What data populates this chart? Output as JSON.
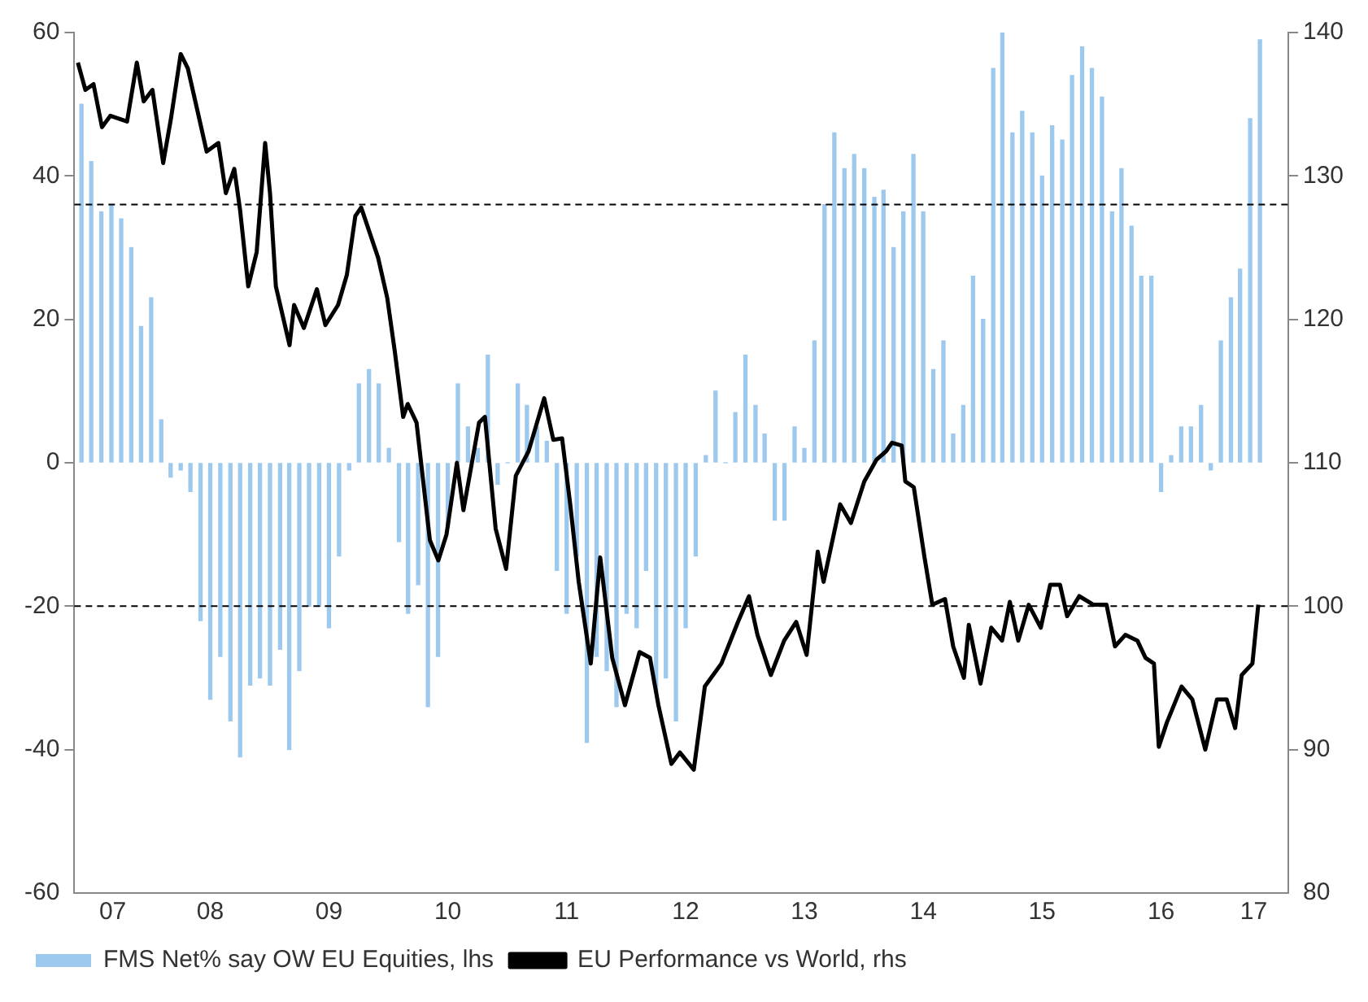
{
  "chart_data": {
    "type": "bar",
    "legend": "bottom left",
    "grid": false,
    "xlim": [
      "2007-05-10",
      "2017-07-27"
    ],
    "xticks": [
      {
        "value": "2007-09-05",
        "label": "07"
      },
      {
        "value": "2008-07-01",
        "label": "08"
      },
      {
        "value": "2009-07-01",
        "label": "09"
      },
      {
        "value": "2010-07-01",
        "label": "10"
      },
      {
        "value": "2011-07-01",
        "label": "11"
      },
      {
        "value": "2012-07-01",
        "label": "12"
      },
      {
        "value": "2013-07-01",
        "label": "13"
      },
      {
        "value": "2014-07-01",
        "label": "14"
      },
      {
        "value": "2015-07-01",
        "label": "15"
      },
      {
        "value": "2016-07-01",
        "label": "16"
      },
      {
        "value": "2017-04-12",
        "label": "17"
      }
    ],
    "ylim": [
      -60,
      60
    ],
    "yticks": [
      -60,
      -40,
      -20,
      0,
      20,
      40,
      60
    ],
    "y2lim": [
      80,
      140
    ],
    "y2ticks": [
      80,
      90,
      100,
      110,
      120,
      130,
      140
    ],
    "ref_lines": [
      {
        "axis": "y",
        "value": 36,
        "color": "#000000",
        "line_style": "dashed"
      },
      {
        "axis": "y",
        "value": -20,
        "color": "#000000",
        "line_style": "dashed"
      }
    ],
    "series": [
      {
        "name": "FMS Net% say OW EU Equities, lhs",
        "color": "#9ec9ee",
        "x": [
          "2007-06",
          "2007-07",
          "2007-08",
          "2007-09",
          "2007-10",
          "2007-11",
          "2007-12",
          "2008-01",
          "2008-02",
          "2008-03",
          "2008-04",
          "2008-05",
          "2008-06",
          "2008-07",
          "2008-08",
          "2008-09",
          "2008-10",
          "2008-11",
          "2008-12",
          "2009-01",
          "2009-02",
          "2009-03",
          "2009-04",
          "2009-05",
          "2009-06",
          "2009-07",
          "2009-08",
          "2009-09",
          "2009-10",
          "2009-11",
          "2009-12",
          "2010-01",
          "2010-02",
          "2010-03",
          "2010-04",
          "2010-05",
          "2010-06",
          "2010-07",
          "2010-08",
          "2010-09",
          "2010-10",
          "2010-11",
          "2010-12",
          "2011-01",
          "2011-02",
          "2011-03",
          "2011-04",
          "2011-05",
          "2011-06",
          "2011-07",
          "2011-08",
          "2011-09",
          "2011-10",
          "2011-11",
          "2011-12",
          "2012-01",
          "2012-02",
          "2012-03",
          "2012-04",
          "2012-05",
          "2012-06",
          "2012-07",
          "2012-08",
          "2012-09",
          "2012-10",
          "2012-11",
          "2012-12",
          "2013-01",
          "2013-02",
          "2013-03",
          "2013-04",
          "2013-05",
          "2013-06",
          "2013-07",
          "2013-08",
          "2013-09",
          "2013-10",
          "2013-11",
          "2013-12",
          "2014-01",
          "2014-02",
          "2014-03",
          "2014-04",
          "2014-05",
          "2014-06",
          "2014-07",
          "2014-08",
          "2014-09",
          "2014-10",
          "2014-11",
          "2014-12",
          "2015-01",
          "2015-02",
          "2015-03",
          "2015-04",
          "2015-05",
          "2015-06",
          "2015-07",
          "2015-08",
          "2015-09",
          "2015-10",
          "2015-11",
          "2015-12",
          "2016-01",
          "2016-02",
          "2016-03",
          "2016-04",
          "2016-05",
          "2016-06",
          "2016-07",
          "2016-08",
          "2016-09",
          "2016-10",
          "2016-11",
          "2016-12",
          "2017-01",
          "2017-02",
          "2017-03",
          "2017-04",
          "2017-05"
        ],
        "values": [
          50,
          42,
          35,
          36,
          34,
          30,
          19,
          23,
          6,
          -2,
          -1,
          -4,
          -22,
          -33,
          -27,
          -36,
          -41,
          -31,
          -30,
          -31,
          -26,
          -40,
          -29,
          -20,
          -20,
          -23,
          -13,
          -1,
          11,
          13,
          11,
          2,
          -11,
          -21,
          -17,
          -34,
          -27,
          -9,
          11,
          5,
          2,
          15,
          -3,
          0,
          11,
          8,
          5,
          3,
          -15,
          -21,
          -13,
          -39,
          -27,
          -29,
          -34,
          -21,
          -23,
          -15,
          -32,
          -30,
          -36,
          -23,
          -13,
          1,
          10,
          0,
          7,
          15,
          8,
          4,
          -8,
          -8,
          5,
          2,
          17,
          36,
          46,
          41,
          43,
          41,
          37,
          38,
          30,
          35,
          43,
          35,
          13,
          17,
          4,
          8,
          26,
          20,
          55,
          60,
          46,
          49,
          46,
          40,
          47,
          45,
          54,
          58,
          55,
          51,
          35,
          41,
          33,
          26,
          26,
          -4,
          1,
          5,
          5,
          8,
          -1,
          17,
          23,
          27,
          48,
          59
        ]
      },
      {
        "name": "EU Performance vs World, rhs",
        "type": "line",
        "axis": "y2",
        "color": "#000000",
        "marker": "none",
        "x": [
          "2007-05-21",
          "2007-06-13",
          "2007-07-08",
          "2007-08-03",
          "2007-08-29",
          "2007-10-19",
          "2007-11-18",
          "2007-12-09",
          "2008-01-05",
          "2008-02-07",
          "2008-03-02",
          "2008-04-01",
          "2008-04-23",
          "2008-05-18",
          "2008-06-20",
          "2008-07-26",
          "2008-08-18",
          "2008-09-13",
          "2008-10-01",
          "2008-10-26",
          "2008-11-21",
          "2008-12-17",
          "2009-01-01",
          "2009-01-19",
          "2009-03-02",
          "2009-03-16",
          "2009-04-15",
          "2009-05-25",
          "2009-06-20",
          "2009-07-29",
          "2009-08-25",
          "2009-09-20",
          "2009-10-08",
          "2009-11-29",
          "2009-12-27",
          "2010-01-19",
          "2010-02-14",
          "2010-02-28",
          "2010-03-27",
          "2010-05-07",
          "2010-06-02",
          "2010-06-27",
          "2010-07-29",
          "2010-08-18",
          "2010-10-05",
          "2010-10-23",
          "2010-11-25",
          "2010-12-27",
          "2011-01-26",
          "2011-03-06",
          "2011-04-23",
          "2011-05-21",
          "2011-06-17",
          "2011-07-12",
          "2011-08-07",
          "2011-09-13",
          "2011-10-12",
          "2011-11-18",
          "2011-12-27",
          "2012-02-10",
          "2012-03-13",
          "2012-04-08",
          "2012-05-18",
          "2012-06-13",
          "2012-07-26",
          "2012-08-29",
          "2012-10-19",
          "2012-12-09",
          "2013-01-12",
          "2013-02-07",
          "2013-03-20",
          "2013-04-30",
          "2013-06-06",
          "2013-07-08",
          "2013-08-11",
          "2013-08-29",
          "2013-10-19",
          "2013-11-21",
          "2014-01-01",
          "2014-02-07",
          "2014-03-09",
          "2014-03-27",
          "2014-04-26",
          "2014-05-07",
          "2014-06-02",
          "2014-07-05",
          "2014-07-29",
          "2014-09-06",
          "2014-10-01",
          "2014-11-03",
          "2014-11-18",
          "2014-12-24",
          "2015-01-26",
          "2015-02-28",
          "2015-03-24",
          "2015-04-19",
          "2015-05-21",
          "2015-06-27",
          "2015-07-26",
          "2015-08-25",
          "2015-09-16",
          "2015-10-23",
          "2015-12-06",
          "2016-01-15",
          "2016-02-10",
          "2016-03-13",
          "2016-04-19",
          "2016-05-14",
          "2016-06-09",
          "2016-06-24",
          "2016-07-19",
          "2016-09-02",
          "2016-10-05",
          "2016-11-14",
          "2016-12-20",
          "2017-01-19",
          "2017-02-14",
          "2017-03-06",
          "2017-04-08",
          "2017-04-26"
        ],
        "values": [
          137.9,
          136.0,
          136.4,
          133.4,
          134.2,
          133.8,
          137.9,
          135.2,
          136.0,
          130.9,
          134.0,
          138.5,
          137.5,
          135.0,
          131.7,
          132.3,
          128.8,
          130.5,
          127.6,
          122.3,
          124.7,
          132.3,
          128.8,
          122.3,
          118.2,
          121.0,
          119.4,
          122.1,
          119.6,
          121.0,
          123.1,
          127.2,
          127.8,
          124.3,
          121.5,
          117.8,
          113.2,
          114.1,
          112.8,
          104.6,
          103.2,
          105.0,
          110.0,
          106.7,
          112.8,
          113.2,
          105.4,
          102.6,
          109.1,
          110.8,
          114.5,
          111.6,
          111.7,
          107.1,
          101.7,
          96.0,
          103.4,
          96.4,
          93.1,
          96.8,
          96.4,
          93.1,
          89.0,
          89.8,
          88.6,
          94.4,
          96.0,
          98.9,
          100.7,
          98.0,
          95.2,
          97.6,
          98.9,
          96.6,
          103.8,
          101.7,
          107.1,
          105.8,
          108.7,
          110.2,
          110.8,
          111.4,
          111.2,
          108.7,
          108.3,
          103.4,
          100.1,
          100.5,
          97.2,
          95.0,
          98.7,
          94.6,
          98.5,
          97.6,
          100.3,
          97.6,
          100.1,
          98.5,
          101.5,
          101.5,
          99.3,
          100.7,
          100.1,
          100.1,
          97.2,
          98.0,
          97.6,
          96.4,
          96.0,
          90.2,
          91.9,
          94.4,
          93.5,
          90.0,
          93.5,
          93.5,
          91.5,
          95.2,
          96.0,
          100.1
        ]
      }
    ]
  }
}
